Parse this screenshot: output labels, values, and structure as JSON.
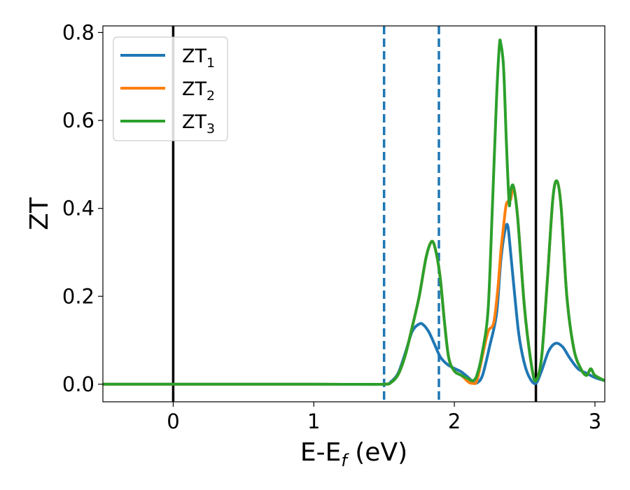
{
  "chart_data": {
    "type": "line",
    "xlabel": "E-E",
    "xlabel_sub": "f",
    "xlabel_unit": " (eV)",
    "ylabel": "ZT",
    "xlim": [
      -0.5,
      3.07
    ],
    "ylim": [
      -0.04,
      0.815
    ],
    "xticks": [
      0,
      1,
      2,
      3
    ],
    "xtick_labels": [
      "0",
      "1",
      "2",
      "3"
    ],
    "yticks": [
      0.0,
      0.2,
      0.4,
      0.6,
      0.8
    ],
    "ytick_labels": [
      "0.0",
      "0.2",
      "0.4",
      "0.6",
      "0.8"
    ],
    "grid": false,
    "legend_position": "upper-left",
    "vlines": [
      {
        "x": 0.0,
        "style": "solid",
        "color": "#000000"
      },
      {
        "x": 1.5,
        "style": "dashed",
        "color": "#1f77b4"
      },
      {
        "x": 1.89,
        "style": "dashed",
        "color": "#1f77b4"
      },
      {
        "x": 2.58,
        "style": "solid",
        "color": "#000000"
      }
    ],
    "series": [
      {
        "name": "ZT",
        "name_sub": "1",
        "color": "#1f77b4",
        "x": [
          -0.5,
          1.0,
          1.5,
          1.55,
          1.6,
          1.65,
          1.7,
          1.75,
          1.78,
          1.82,
          1.86,
          1.9,
          1.95,
          2.0,
          2.05,
          2.1,
          2.13,
          2.16,
          2.2,
          2.25,
          2.3,
          2.33,
          2.36,
          2.38,
          2.4,
          2.43,
          2.46,
          2.5,
          2.54,
          2.58,
          2.62,
          2.67,
          2.72,
          2.77,
          2.82,
          2.88,
          2.94,
          3.0,
          3.07
        ],
        "y": [
          0.0,
          0.0,
          0.0,
          0.006,
          0.025,
          0.07,
          0.12,
          0.137,
          0.135,
          0.118,
          0.09,
          0.062,
          0.045,
          0.036,
          0.028,
          0.015,
          0.006,
          0.003,
          0.02,
          0.085,
          0.16,
          0.28,
          0.35,
          0.36,
          0.3,
          0.2,
          0.11,
          0.045,
          0.012,
          0.002,
          0.03,
          0.075,
          0.093,
          0.085,
          0.06,
          0.035,
          0.025,
          0.015,
          0.008
        ]
      },
      {
        "name": "ZT",
        "name_sub": "2",
        "color": "#ff7f0e",
        "x": [
          -0.5,
          1.0,
          1.5,
          1.55,
          1.6,
          1.65,
          1.7,
          1.75,
          1.8,
          1.84,
          1.87,
          1.9,
          1.93,
          1.96,
          2.0,
          2.05,
          2.1,
          2.13,
          2.16,
          2.2,
          2.24,
          2.28,
          2.31,
          2.33,
          2.35,
          2.37,
          2.4,
          2.42,
          2.45,
          2.5,
          2.55,
          2.58,
          2.62,
          2.66,
          2.7,
          2.73,
          2.76,
          2.8,
          2.85,
          2.9,
          2.94,
          2.97,
          3.0,
          3.07
        ],
        "y": [
          0.0,
          0.0,
          0.0,
          0.004,
          0.022,
          0.065,
          0.13,
          0.2,
          0.29,
          0.325,
          0.3,
          0.24,
          0.14,
          0.06,
          0.03,
          0.02,
          0.005,
          0.002,
          0.008,
          0.065,
          0.12,
          0.14,
          0.22,
          0.3,
          0.36,
          0.41,
          0.42,
          0.45,
          0.38,
          0.17,
          0.04,
          0.008,
          0.06,
          0.23,
          0.42,
          0.462,
          0.4,
          0.2,
          0.08,
          0.035,
          0.02,
          0.035,
          0.02,
          0.008
        ]
      },
      {
        "name": "ZT",
        "name_sub": "3",
        "color": "#2ca02c",
        "x": [
          -0.5,
          1.0,
          1.5,
          1.55,
          1.6,
          1.65,
          1.7,
          1.75,
          1.8,
          1.84,
          1.87,
          1.9,
          1.93,
          1.96,
          2.0,
          2.05,
          2.1,
          2.13,
          2.16,
          2.2,
          2.24,
          2.27,
          2.3,
          2.32,
          2.33,
          2.35,
          2.37,
          2.39,
          2.4,
          2.42,
          2.45,
          2.5,
          2.55,
          2.58,
          2.62,
          2.66,
          2.7,
          2.73,
          2.76,
          2.8,
          2.85,
          2.9,
          2.94,
          2.97,
          3.0,
          3.07
        ],
        "y": [
          0.0,
          0.0,
          0.0,
          0.004,
          0.022,
          0.065,
          0.13,
          0.2,
          0.29,
          0.325,
          0.3,
          0.24,
          0.14,
          0.06,
          0.03,
          0.02,
          0.012,
          0.008,
          0.02,
          0.075,
          0.17,
          0.4,
          0.65,
          0.77,
          0.775,
          0.72,
          0.55,
          0.41,
          0.44,
          0.45,
          0.38,
          0.17,
          0.04,
          0.008,
          0.06,
          0.23,
          0.42,
          0.462,
          0.4,
          0.2,
          0.08,
          0.035,
          0.02,
          0.035,
          0.02,
          0.008
        ]
      }
    ]
  }
}
